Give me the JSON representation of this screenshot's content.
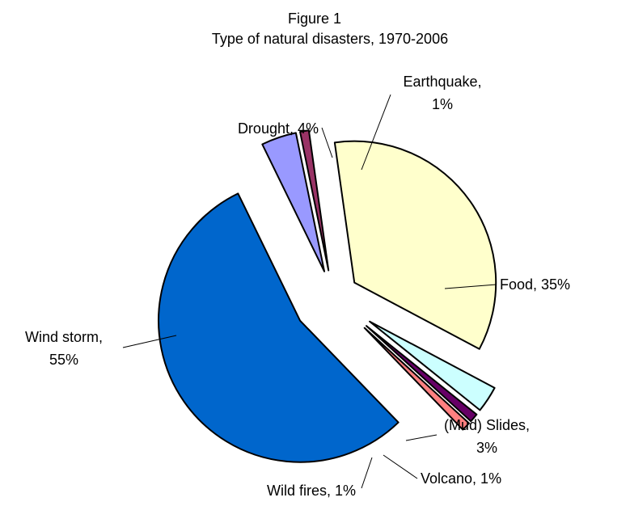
{
  "chart_data": {
    "type": "pie",
    "title": "Figure 1",
    "subtitle": "Type of natural disasters, 1970-2006",
    "slices": [
      {
        "name": "Drought",
        "value": 4,
        "label_lines": [
          "Drought, 4%"
        ],
        "color": "#9999FF"
      },
      {
        "name": "Earthquake",
        "value": 1,
        "label_lines": [
          "Earthquake,",
          "1%"
        ],
        "color": "#993366"
      },
      {
        "name": "Food",
        "value": 35,
        "label_lines": [
          "Food, 35%"
        ],
        "color": "#FFFFCC"
      },
      {
        "name": "(Mud) Slides",
        "value": 3,
        "label_lines": [
          "(Mud) Slides,",
          "3%"
        ],
        "color": "#CCFFFF"
      },
      {
        "name": "Volcano",
        "value": 1,
        "label_lines": [
          "Volcano, 1%"
        ],
        "color": "#660066"
      },
      {
        "name": "Wild fires",
        "value": 1,
        "label_lines": [
          "Wild fires, 1%"
        ],
        "color": "#FF8080"
      },
      {
        "name": "Wind storm",
        "value": 55,
        "label_lines": [
          "Wind storm,",
          "55%"
        ],
        "color": "#0066CC"
      }
    ],
    "legend": "none",
    "grid": false
  }
}
